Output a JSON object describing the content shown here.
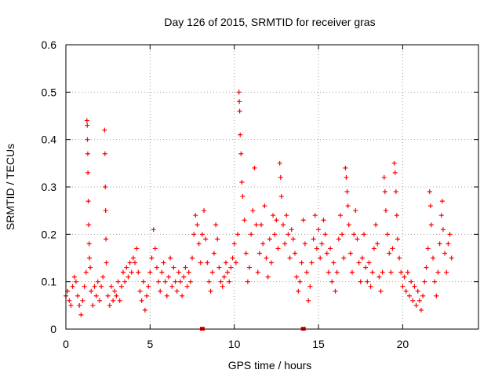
{
  "chart_data": {
    "type": "scatter",
    "title": "Day 126 of 2015, SRMTID for receiver gras",
    "xlabel": "GPS time / hours",
    "ylabel": "SRMTID / TECUs",
    "xlim": [
      0,
      24.5
    ],
    "ylim": [
      0,
      0.6
    ],
    "xticks": [
      0,
      5,
      10,
      15,
      20
    ],
    "xtick_labels": [
      "0",
      "5",
      "10",
      "15",
      "20"
    ],
    "yticks": [
      0,
      0.1,
      0.2,
      0.3,
      0.4,
      0.5,
      0.6
    ],
    "ytick_labels": [
      "0",
      "0.1",
      "0.2",
      "0.3",
      "0.4",
      "0.5",
      "0.6"
    ],
    "grid": true,
    "marker": "plus",
    "color": "#ff0000",
    "series": [
      {
        "name": "SRMTID",
        "points": [
          [
            0.0,
            0.07
          ],
          [
            0.1,
            0.08
          ],
          [
            0.2,
            0.06
          ],
          [
            0.3,
            0.05
          ],
          [
            0.4,
            0.09
          ],
          [
            0.5,
            0.11
          ],
          [
            0.6,
            0.1
          ],
          [
            0.7,
            0.07
          ],
          [
            0.8,
            0.05
          ],
          [
            0.9,
            0.03
          ],
          [
            1.0,
            0.06
          ],
          [
            1.1,
            0.09
          ],
          [
            1.2,
            0.12
          ],
          [
            1.25,
            0.44
          ],
          [
            1.27,
            0.43
          ],
          [
            1.28,
            0.4
          ],
          [
            1.3,
            0.37
          ],
          [
            1.31,
            0.33
          ],
          [
            1.33,
            0.27
          ],
          [
            1.35,
            0.22
          ],
          [
            1.38,
            0.18
          ],
          [
            1.4,
            0.15
          ],
          [
            1.45,
            0.13
          ],
          [
            1.5,
            0.08
          ],
          [
            1.6,
            0.05
          ],
          [
            1.7,
            0.09
          ],
          [
            1.8,
            0.07
          ],
          [
            1.9,
            0.1
          ],
          [
            2.0,
            0.06
          ],
          [
            2.1,
            0.09
          ],
          [
            2.2,
            0.11
          ],
          [
            2.3,
            0.42
          ],
          [
            2.32,
            0.37
          ],
          [
            2.34,
            0.3
          ],
          [
            2.36,
            0.25
          ],
          [
            2.38,
            0.19
          ],
          [
            2.4,
            0.14
          ],
          [
            2.5,
            0.07
          ],
          [
            2.6,
            0.05
          ],
          [
            2.7,
            0.09
          ],
          [
            2.8,
            0.06
          ],
          [
            2.9,
            0.08
          ],
          [
            3.0,
            0.07
          ],
          [
            3.1,
            0.1
          ],
          [
            3.2,
            0.06
          ],
          [
            3.3,
            0.09
          ],
          [
            3.4,
            0.12
          ],
          [
            3.5,
            0.1
          ],
          [
            3.6,
            0.13
          ],
          [
            3.7,
            0.11
          ],
          [
            3.8,
            0.14
          ],
          [
            3.9,
            0.12
          ],
          [
            4.0,
            0.15
          ],
          [
            4.1,
            0.14
          ],
          [
            4.2,
            0.17
          ],
          [
            4.3,
            0.12
          ],
          [
            4.4,
            0.08
          ],
          [
            4.5,
            0.06
          ],
          [
            4.6,
            0.1
          ],
          [
            4.7,
            0.04
          ],
          [
            4.8,
            0.07
          ],
          [
            4.9,
            0.09
          ],
          [
            5.0,
            0.12
          ],
          [
            5.1,
            0.15
          ],
          [
            5.2,
            0.21
          ],
          [
            5.3,
            0.17
          ],
          [
            5.4,
            0.13
          ],
          [
            5.5,
            0.1
          ],
          [
            5.6,
            0.08
          ],
          [
            5.7,
            0.12
          ],
          [
            5.8,
            0.14
          ],
          [
            5.9,
            0.1
          ],
          [
            6.0,
            0.07
          ],
          [
            6.1,
            0.11
          ],
          [
            6.2,
            0.15
          ],
          [
            6.3,
            0.09
          ],
          [
            6.4,
            0.13
          ],
          [
            6.5,
            0.1
          ],
          [
            6.6,
            0.08
          ],
          [
            6.7,
            0.12
          ],
          [
            6.8,
            0.1
          ],
          [
            6.9,
            0.07
          ],
          [
            7.0,
            0.11
          ],
          [
            7.1,
            0.13
          ],
          [
            7.2,
            0.09
          ],
          [
            7.3,
            0.12
          ],
          [
            7.4,
            0.1
          ],
          [
            7.5,
            0.15
          ],
          [
            7.6,
            0.2
          ],
          [
            7.7,
            0.24
          ],
          [
            7.8,
            0.22
          ],
          [
            7.9,
            0.18
          ],
          [
            8.0,
            0.14
          ],
          [
            8.1,
            0.2
          ],
          [
            8.2,
            0.25
          ],
          [
            8.3,
            0.19
          ],
          [
            8.4,
            0.14
          ],
          [
            8.5,
            0.1
          ],
          [
            8.6,
            0.08
          ],
          [
            8.7,
            0.12
          ],
          [
            8.8,
            0.16
          ],
          [
            8.9,
            0.22
          ],
          [
            9.0,
            0.19
          ],
          [
            9.1,
            0.13
          ],
          [
            9.2,
            0.1
          ],
          [
            9.3,
            0.09
          ],
          [
            9.4,
            0.11
          ],
          [
            9.5,
            0.14
          ],
          [
            9.6,
            0.12
          ],
          [
            9.7,
            0.1
          ],
          [
            9.8,
            0.13
          ],
          [
            9.9,
            0.15
          ],
          [
            10.0,
            0.18
          ],
          [
            10.1,
            0.14
          ],
          [
            10.2,
            0.2
          ],
          [
            10.28,
            0.5
          ],
          [
            10.3,
            0.48
          ],
          [
            10.32,
            0.46
          ],
          [
            10.35,
            0.41
          ],
          [
            10.4,
            0.37
          ],
          [
            10.45,
            0.31
          ],
          [
            10.5,
            0.28
          ],
          [
            10.6,
            0.23
          ],
          [
            10.7,
            0.16
          ],
          [
            10.8,
            0.1
          ],
          [
            10.9,
            0.13
          ],
          [
            11.0,
            0.2
          ],
          [
            11.1,
            0.25
          ],
          [
            11.2,
            0.34
          ],
          [
            11.3,
            0.22
          ],
          [
            11.4,
            0.12
          ],
          [
            11.5,
            0.16
          ],
          [
            11.6,
            0.22
          ],
          [
            11.7,
            0.18
          ],
          [
            11.8,
            0.26
          ],
          [
            11.9,
            0.15
          ],
          [
            12.0,
            0.11
          ],
          [
            12.1,
            0.19
          ],
          [
            12.2,
            0.14
          ],
          [
            12.3,
            0.24
          ],
          [
            12.4,
            0.2
          ],
          [
            12.5,
            0.23
          ],
          [
            12.6,
            0.17
          ],
          [
            12.7,
            0.35
          ],
          [
            12.75,
            0.32
          ],
          [
            12.8,
            0.28
          ],
          [
            12.9,
            0.22
          ],
          [
            13.0,
            0.18
          ],
          [
            13.1,
            0.24
          ],
          [
            13.2,
            0.2
          ],
          [
            13.3,
            0.15
          ],
          [
            13.4,
            0.21
          ],
          [
            13.5,
            0.19
          ],
          [
            13.6,
            0.16
          ],
          [
            13.7,
            0.11
          ],
          [
            13.8,
            0.08
          ],
          [
            13.9,
            0.1
          ],
          [
            14.0,
            0.14
          ],
          [
            14.1,
            0.23
          ],
          [
            14.2,
            0.18
          ],
          [
            14.3,
            0.12
          ],
          [
            14.4,
            0.06
          ],
          [
            14.5,
            0.09
          ],
          [
            14.6,
            0.14
          ],
          [
            14.7,
            0.19
          ],
          [
            14.8,
            0.24
          ],
          [
            14.9,
            0.17
          ],
          [
            15.0,
            0.21
          ],
          [
            15.1,
            0.15
          ],
          [
            15.2,
            0.18
          ],
          [
            15.3,
            0.23
          ],
          [
            15.4,
            0.2
          ],
          [
            15.5,
            0.16
          ],
          [
            15.6,
            0.12
          ],
          [
            15.7,
            0.17
          ],
          [
            15.8,
            0.1
          ],
          [
            15.9,
            0.14
          ],
          [
            16.0,
            0.08
          ],
          [
            16.1,
            0.12
          ],
          [
            16.2,
            0.19
          ],
          [
            16.3,
            0.24
          ],
          [
            16.4,
            0.2
          ],
          [
            16.5,
            0.15
          ],
          [
            16.6,
            0.34
          ],
          [
            16.65,
            0.32
          ],
          [
            16.7,
            0.29
          ],
          [
            16.75,
            0.26
          ],
          [
            16.8,
            0.22
          ],
          [
            16.9,
            0.16
          ],
          [
            17.0,
            0.12
          ],
          [
            17.1,
            0.2
          ],
          [
            17.2,
            0.25
          ],
          [
            17.3,
            0.19
          ],
          [
            17.4,
            0.14
          ],
          [
            17.5,
            0.1
          ],
          [
            17.6,
            0.15
          ],
          [
            17.7,
            0.2
          ],
          [
            17.8,
            0.13
          ],
          [
            17.9,
            0.1
          ],
          [
            18.0,
            0.14
          ],
          [
            18.1,
            0.09
          ],
          [
            18.2,
            0.12
          ],
          [
            18.3,
            0.17
          ],
          [
            18.4,
            0.22
          ],
          [
            18.5,
            0.18
          ],
          [
            18.6,
            0.11
          ],
          [
            18.7,
            0.08
          ],
          [
            18.8,
            0.12
          ],
          [
            18.9,
            0.32
          ],
          [
            18.95,
            0.29
          ],
          [
            19.0,
            0.25
          ],
          [
            19.1,
            0.2
          ],
          [
            19.2,
            0.16
          ],
          [
            19.3,
            0.12
          ],
          [
            19.4,
            0.17
          ],
          [
            19.5,
            0.35
          ],
          [
            19.55,
            0.33
          ],
          [
            19.6,
            0.29
          ],
          [
            19.65,
            0.24
          ],
          [
            19.7,
            0.19
          ],
          [
            19.8,
            0.15
          ],
          [
            19.9,
            0.12
          ],
          [
            20.0,
            0.09
          ],
          [
            20.1,
            0.11
          ],
          [
            20.2,
            0.08
          ],
          [
            20.3,
            0.12
          ],
          [
            20.4,
            0.07
          ],
          [
            20.5,
            0.1
          ],
          [
            20.6,
            0.06
          ],
          [
            20.7,
            0.09
          ],
          [
            20.8,
            0.05
          ],
          [
            20.9,
            0.08
          ],
          [
            21.0,
            0.06
          ],
          [
            21.1,
            0.04
          ],
          [
            21.2,
            0.07
          ],
          [
            21.3,
            0.1
          ],
          [
            21.4,
            0.13
          ],
          [
            21.5,
            0.17
          ],
          [
            21.6,
            0.29
          ],
          [
            21.65,
            0.26
          ],
          [
            21.7,
            0.22
          ],
          [
            21.8,
            0.15
          ],
          [
            21.9,
            0.1
          ],
          [
            22.0,
            0.07
          ],
          [
            22.1,
            0.12
          ],
          [
            22.2,
            0.18
          ],
          [
            22.3,
            0.24
          ],
          [
            22.35,
            0.27
          ],
          [
            22.4,
            0.21
          ],
          [
            22.5,
            0.16
          ],
          [
            22.6,
            0.12
          ],
          [
            22.7,
            0.18
          ],
          [
            22.8,
            0.2
          ],
          [
            22.9,
            0.15
          ]
        ]
      }
    ],
    "gap_markers_x": [
      8.1,
      14.1
    ]
  }
}
